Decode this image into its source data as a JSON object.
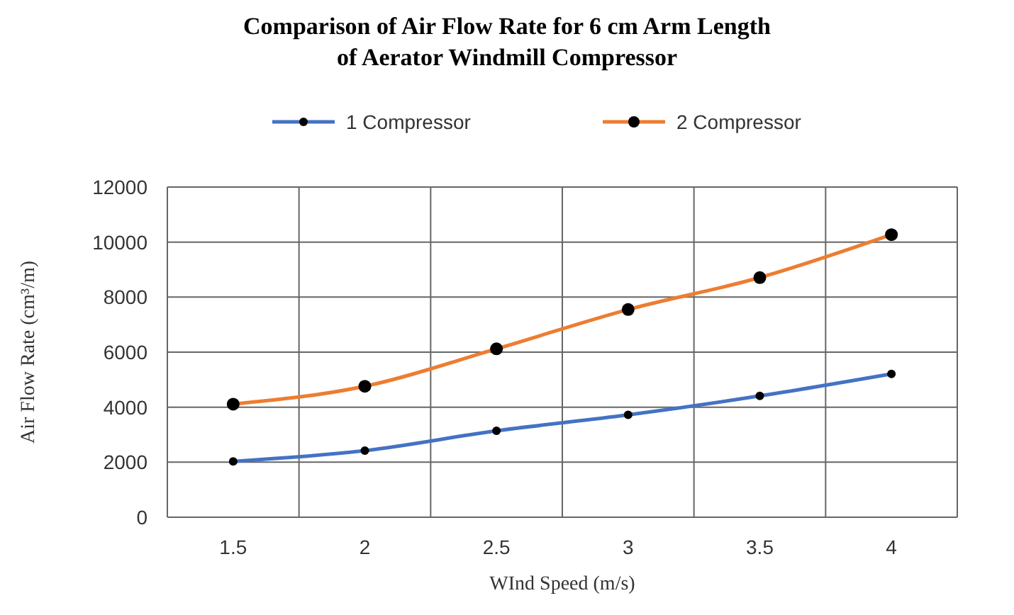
{
  "chart_data": {
    "type": "line",
    "title": "Comparison  of Air Flow Rate for 6 cm Arm Length of Aerator Windmill Compressor",
    "xlabel": "WInd Speed (m/s)",
    "ylabel": "Air Flow Rate (cm³/m)",
    "categories": [
      "1.5",
      "2",
      "2.5",
      "3",
      "3.5",
      "4"
    ],
    "series": [
      {
        "name": "1 Compressor",
        "color": "#4472c4",
        "values": [
          2030,
          2420,
          3140,
          3720,
          4410,
          5210
        ]
      },
      {
        "name": "2 Compressor",
        "color": "#ed7d31",
        "values": [
          4110,
          4760,
          6120,
          7550,
          8710,
          10270
        ]
      }
    ],
    "ylim": [
      0,
      12000
    ],
    "yticks": [
      0,
      2000,
      4000,
      6000,
      8000,
      10000,
      12000
    ],
    "grid": true,
    "legend": "top",
    "marker": "circle",
    "line_style": "solid"
  }
}
